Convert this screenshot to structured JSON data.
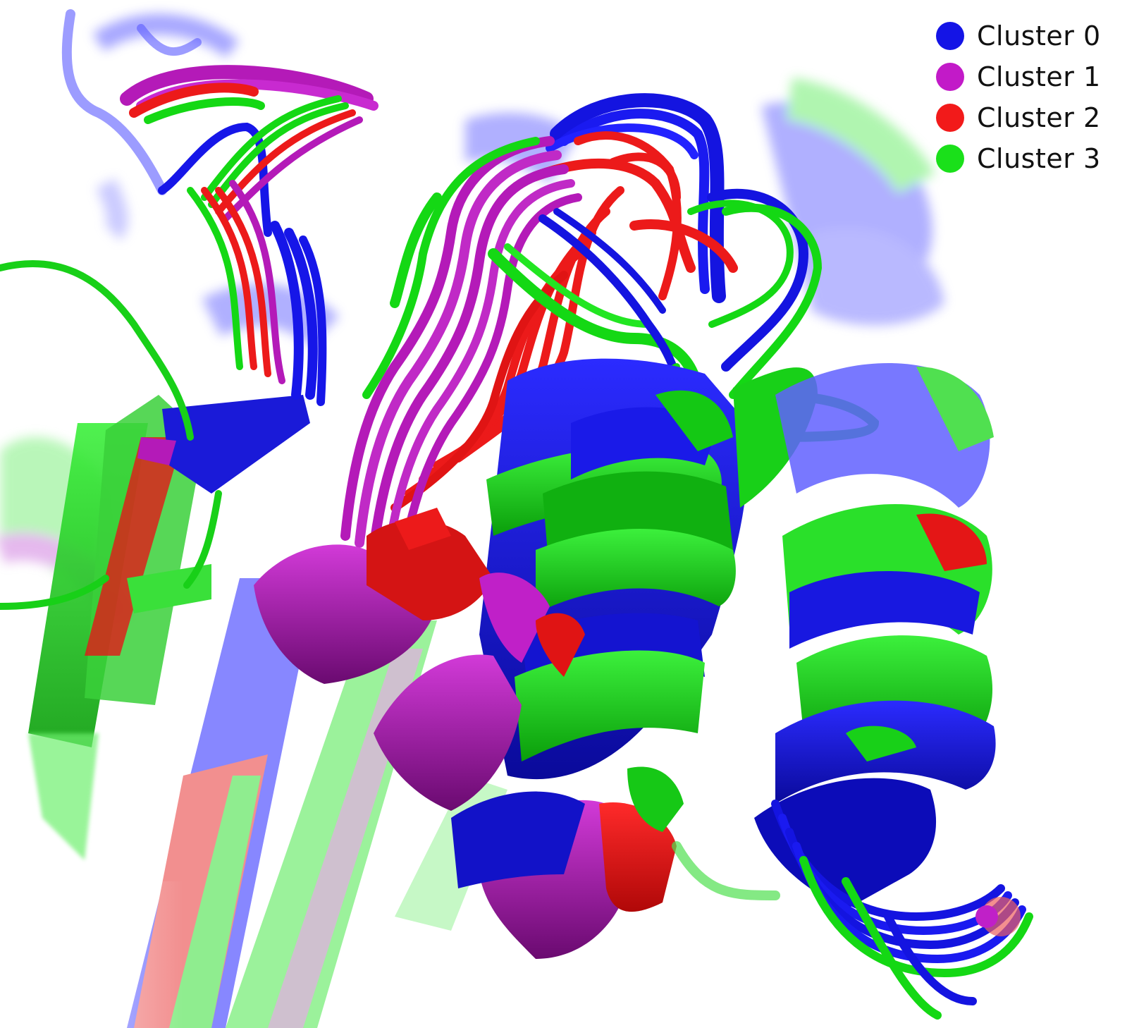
{
  "legend": {
    "items": [
      {
        "label": "Cluster 0",
        "color": "#1414e6"
      },
      {
        "label": "Cluster 1",
        "color": "#c21ac8"
      },
      {
        "label": "Cluster 2",
        "color": "#f21a1a"
      },
      {
        "label": "Cluster 3",
        "color": "#1ae01a"
      }
    ]
  },
  "colors": {
    "blue": "#1414e6",
    "magenta": "#b21ab8",
    "red": "#ec1616",
    "green": "#14d814",
    "background": "#ffffff"
  }
}
